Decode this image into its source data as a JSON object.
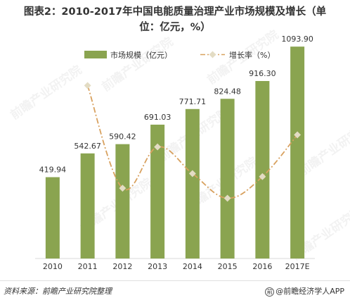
{
  "title_line1": "图表2：2010-2017年中国电能质量治理产业市场规模及增长（单",
  "title_line2": "位：亿元，%）",
  "legend": {
    "bar_label": "市场规模（亿元）",
    "line_label": "增长率（%）"
  },
  "footer": {
    "source": "资料来源：前瞻产业研究院整理",
    "brand": "@前瞻经济学人APP",
    "brand_icon": "copyright-circle-icon"
  },
  "watermark": {
    "text": "前瞻产业研究院"
  },
  "colors": {
    "bar": "#8aa450",
    "line": "#d8a15f",
    "marker": "#e3dcc4",
    "text": "#333333",
    "axis": "#d9d9d9"
  },
  "chart_data": {
    "type": "bar",
    "categories": [
      "2010",
      "2011",
      "2012",
      "2013",
      "2014",
      "2015",
      "2016",
      "2017E"
    ],
    "series": [
      {
        "name": "市场规模（亿元）",
        "type": "bar",
        "values": [
          419.94,
          542.67,
          590.42,
          691.03,
          771.71,
          824.48,
          916.3,
          1093.9
        ],
        "labels": [
          "419.94",
          "542.67",
          "590.42",
          "691.03",
          "771.71",
          "824.48",
          "916.30",
          "1093.90"
        ]
      },
      {
        "name": "增长率（%）",
        "type": "line",
        "x": [
          "2011",
          "2012",
          "2013",
          "2014",
          "2015",
          "2016",
          "2017E"
        ],
        "values": [
          29.2,
          8.8,
          17.0,
          11.7,
          6.8,
          11.1,
          19.4
        ]
      }
    ],
    "bar_ylim": [
      0,
      1200
    ],
    "line_ylim": [
      0,
      35
    ],
    "legend_position": "top",
    "grid": false
  }
}
